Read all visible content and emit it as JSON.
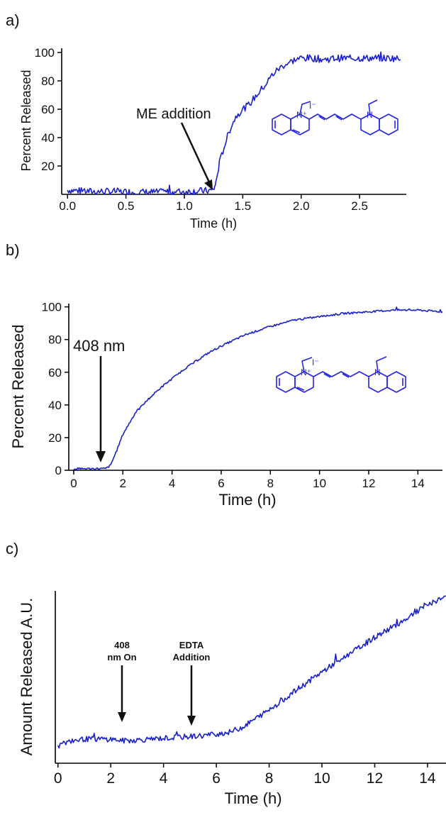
{
  "panels": [
    {
      "id": "a",
      "label": "a)",
      "ylabel": "Percent Released",
      "xlabel": "Time (h)",
      "annotation": "ME addition",
      "structure": {
        "cation": "N⁺",
        "anion": "I⁻",
        "neutral": "N"
      }
    },
    {
      "id": "b",
      "label": "b)",
      "ylabel": "Percent Released",
      "xlabel": "Time  (h)",
      "annotation": "408 nm",
      "structure": {
        "cation": "N⁺",
        "anion": "I⁻",
        "neutral": "N"
      }
    },
    {
      "id": "c",
      "label": "c)",
      "ylabel": "Amount Released A.U.",
      "xlabel": "Time (h)",
      "annotations": [
        {
          "line1": "408",
          "line2": "nm On"
        },
        {
          "line1": "EDTA",
          "line2": "Addition"
        }
      ]
    }
  ],
  "chart_data": [
    {
      "type": "line",
      "panel": "a",
      "xlabel": "Time (h)",
      "ylabel": "Percent Released",
      "xlim": [
        -0.05,
        2.9
      ],
      "ylim": [
        0,
        103
      ],
      "xticks": [
        "0.0",
        "0.5",
        "1.0",
        "1.5",
        "2.0",
        "2.5"
      ],
      "yticks": [
        "20",
        "40",
        "60",
        "80",
        "100"
      ],
      "grid": false,
      "color": "#1a20c8",
      "x": [
        0.0,
        0.2,
        0.4,
        0.6,
        0.8,
        1.0,
        1.2,
        1.25,
        1.27,
        1.3,
        1.35,
        1.4,
        1.45,
        1.5,
        1.55,
        1.6,
        1.65,
        1.7,
        1.75,
        1.8,
        1.85,
        1.9,
        1.95,
        2.0,
        2.1,
        2.2,
        2.3,
        2.4,
        2.5,
        2.6,
        2.7,
        2.8,
        2.85
      ],
      "y": [
        3,
        2,
        2,
        1.5,
        1.5,
        2,
        2.5,
        3,
        8,
        22,
        36,
        48,
        56,
        60,
        63,
        68,
        73,
        78,
        84,
        88,
        91,
        93,
        95,
        96,
        96,
        95,
        96,
        96,
        96,
        96,
        96,
        96,
        95
      ],
      "annotations": [
        {
          "text": "ME addition",
          "x": 1.25,
          "y": 3
        }
      ]
    },
    {
      "type": "line",
      "panel": "b",
      "xlabel": "Time  (h)",
      "ylabel": "Percent Released",
      "xlim": [
        -0.2,
        15
      ],
      "ylim": [
        0,
        102
      ],
      "xticks": [
        "0",
        "2",
        "4",
        "6",
        "8",
        "10",
        "12",
        "14"
      ],
      "yticks": [
        "0",
        "20",
        "40",
        "60",
        "80",
        "100"
      ],
      "grid": false,
      "color": "#1a20c8",
      "x": [
        0.0,
        0.5,
        1.0,
        1.3,
        1.5,
        1.8,
        2.0,
        2.5,
        3.0,
        3.5,
        4.0,
        4.5,
        5.0,
        5.5,
        6.0,
        7.0,
        8.0,
        9.0,
        10.0,
        11.0,
        12.0,
        13.0,
        14.0,
        15.0
      ],
      "y": [
        1,
        1,
        1,
        1,
        3,
        14,
        22,
        35,
        43,
        50,
        56,
        62,
        67,
        72,
        76,
        83,
        88,
        92,
        94,
        96,
        97,
        98,
        98,
        97
      ],
      "annotations": [
        {
          "text": "408 nm",
          "x": 1.3,
          "y": 1
        }
      ]
    },
    {
      "type": "line",
      "panel": "c",
      "xlabel": "Time (h)",
      "ylabel": "Amount Released A.U.",
      "xlim": [
        -0.1,
        14.7
      ],
      "ylim": [
        0,
        100
      ],
      "xticks": [
        "0",
        "2",
        "4",
        "6",
        "8",
        "10",
        "12",
        "14"
      ],
      "yticks": [],
      "grid": false,
      "color": "#1a20c8",
      "x": [
        0.0,
        0.3,
        0.5,
        1.0,
        1.5,
        2.0,
        2.5,
        3.0,
        3.5,
        4.0,
        4.5,
        5.0,
        5.5,
        6.0,
        6.5,
        7.0,
        7.5,
        8.0,
        9.0,
        10.0,
        11.0,
        12.0,
        13.0,
        14.0,
        14.7
      ],
      "y": [
        10,
        12,
        13,
        14,
        14,
        14,
        13,
        13.5,
        14,
        14.5,
        15,
        15.5,
        16,
        17,
        18,
        21,
        26,
        31,
        42,
        53,
        63,
        73,
        82,
        92,
        97
      ],
      "annotations": [
        {
          "text": "408 nm On",
          "x": 2.5,
          "y": 14
        },
        {
          "text": "EDTA Addition",
          "x": 5.1,
          "y": 16
        }
      ]
    }
  ]
}
